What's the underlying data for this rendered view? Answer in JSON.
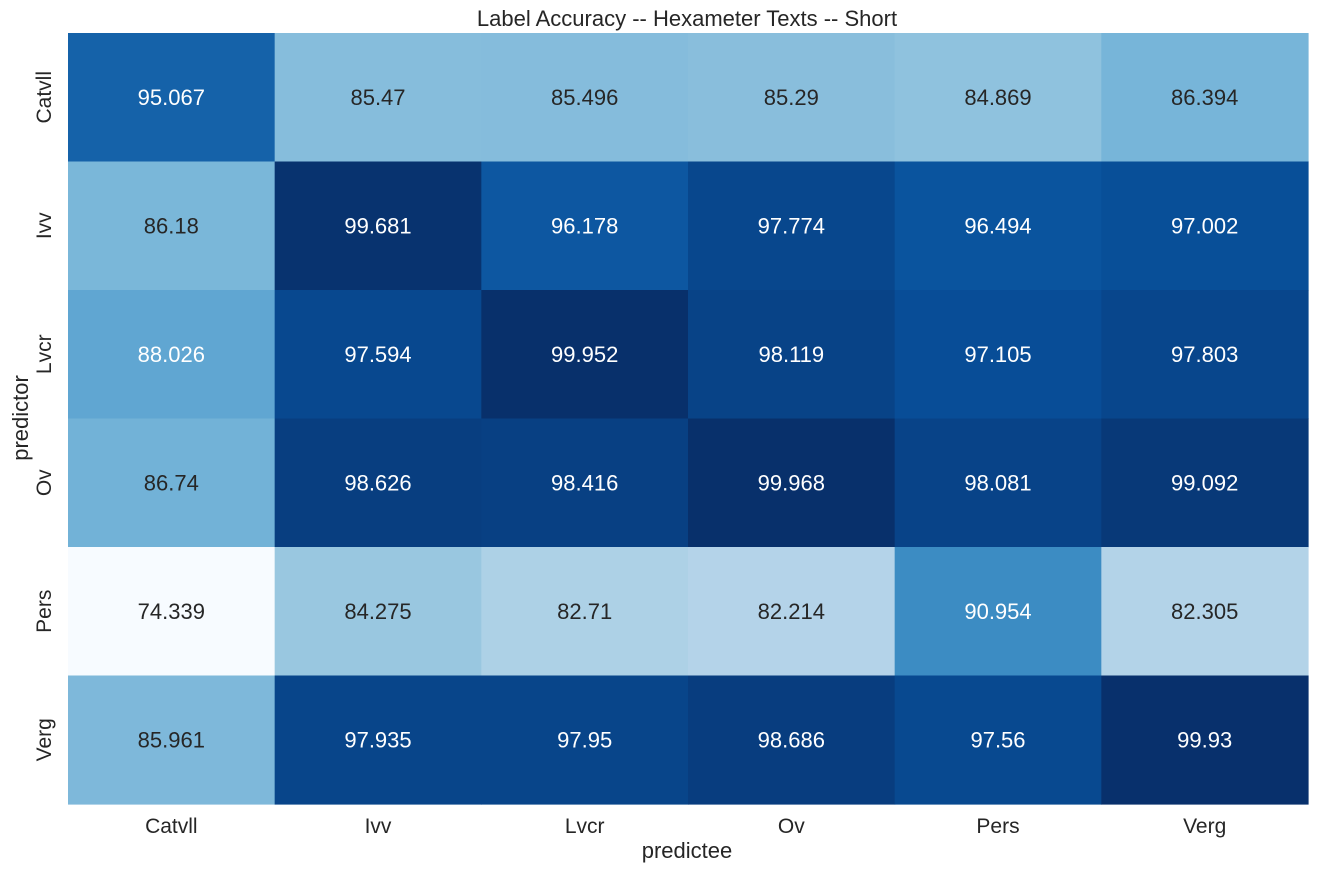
{
  "chart_data": {
    "type": "heatmap",
    "title": "Label Accuracy -- Hexameter Texts -- Short",
    "xlabel": "predictee",
    "ylabel": "predictor",
    "x_categories": [
      "Catvll",
      "Ivv",
      "Lvcr",
      "Ov",
      "Pers",
      "Verg"
    ],
    "y_categories": [
      "Catvll",
      "Ivv",
      "Lvcr",
      "Ov",
      "Pers",
      "Verg"
    ],
    "values": [
      [
        95.067,
        85.47,
        85.496,
        85.29,
        84.869,
        86.394
      ],
      [
        86.18,
        99.681,
        96.178,
        97.774,
        96.494,
        97.002
      ],
      [
        88.026,
        97.594,
        99.952,
        98.119,
        97.105,
        97.803
      ],
      [
        86.74,
        98.626,
        98.416,
        99.968,
        98.081,
        99.092
      ],
      [
        74.339,
        84.275,
        82.71,
        82.214,
        90.954,
        82.305
      ],
      [
        85.961,
        97.935,
        97.95,
        98.686,
        97.56,
        99.93
      ]
    ],
    "value_labels": [
      [
        "95.067",
        "85.47",
        "85.496",
        "85.29",
        "84.869",
        "86.394"
      ],
      [
        "86.18",
        "99.681",
        "96.178",
        "97.774",
        "96.494",
        "97.002"
      ],
      [
        "88.026",
        "97.594",
        "99.952",
        "98.119",
        "97.105",
        "97.803"
      ],
      [
        "86.74",
        "98.626",
        "98.416",
        "99.968",
        "98.081",
        "99.092"
      ],
      [
        "74.339",
        "84.275",
        "82.71",
        "82.214",
        "90.954",
        "82.305"
      ],
      [
        "85.961",
        "97.935",
        "97.95",
        "98.686",
        "97.56",
        "99.93"
      ]
    ],
    "colormap": "Blues",
    "colorbar": false,
    "grid": false
  }
}
